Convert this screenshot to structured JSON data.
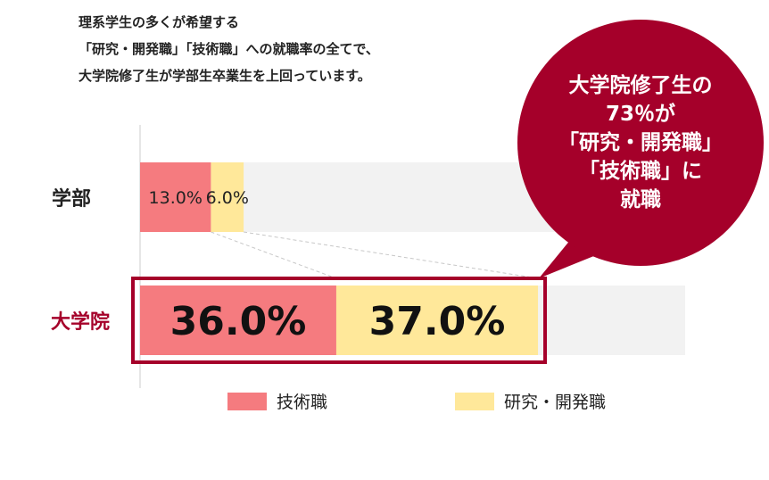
{
  "intro": {
    "lines": [
      "理系学生の多くが希望する",
      "「研究・開発職」「技術職」への就職率の全てで、",
      "大学院修了生が学部生卒業生を上回っています。"
    ]
  },
  "callout": {
    "lines": [
      "大学院修了生の",
      "73％が",
      "「研究・開発職」",
      "「技術職」に",
      "就職"
    ]
  },
  "colors": {
    "tech": "#f57b7f",
    "rd": "#ffe89a",
    "track": "#f2f2f2",
    "accent": "#a5002a"
  },
  "chart_data": {
    "type": "bar",
    "orientation": "horizontal",
    "stacked": true,
    "categories": [
      "学部",
      "大学院"
    ],
    "series": [
      {
        "name": "技術職",
        "values": [
          13.0,
          36.0
        ],
        "labels": [
          "13.0%",
          "36.0%"
        ]
      },
      {
        "name": "研究・開発職",
        "values": [
          6.0,
          37.0
        ],
        "labels": [
          "6.0%",
          "37.0%"
        ]
      }
    ],
    "xlim": [
      0,
      100
    ],
    "highlight_category": "大学院",
    "legend_position": "bottom"
  }
}
